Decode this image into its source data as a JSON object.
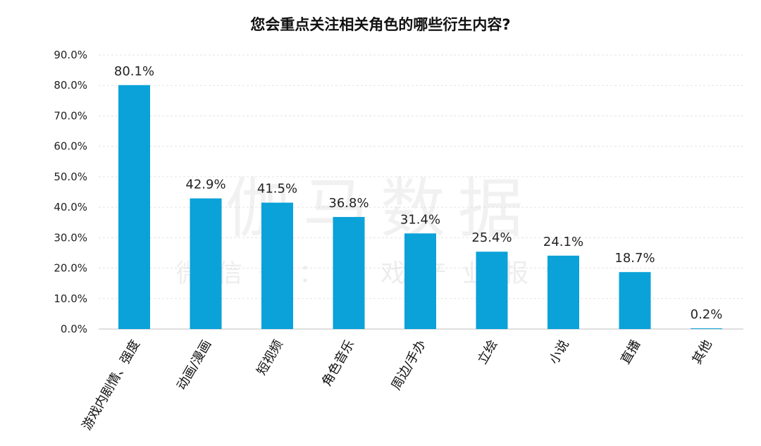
{
  "chart_data": {
    "type": "bar",
    "title": "您会重点关注相关角色的哪些衍生内容?",
    "categories": [
      "游戏内剧情、强度",
      "动画/漫画",
      "短视频",
      "角色音乐",
      "周边/手办",
      "立绘",
      "小说",
      "直播",
      "其他"
    ],
    "values": [
      80.1,
      42.9,
      41.5,
      36.8,
      31.4,
      25.4,
      24.1,
      18.7,
      0.2
    ],
    "data_labels": [
      "80.1%",
      "42.9%",
      "41.5%",
      "36.8%",
      "31.4%",
      "25.4%",
      "24.1%",
      "18.7%",
      "0.2%"
    ],
    "y_ticks": [
      "0.0%",
      "10.0%",
      "20.0%",
      "30.0%",
      "40.0%",
      "50.0%",
      "60.0%",
      "70.0%",
      "80.0%",
      "90.0%"
    ],
    "ylim": [
      0,
      90
    ],
    "grid": true,
    "bar_color": "#0aa2d8",
    "watermark": "伽马数据",
    "watermark_sub": "微信号：游戏产业报告"
  }
}
